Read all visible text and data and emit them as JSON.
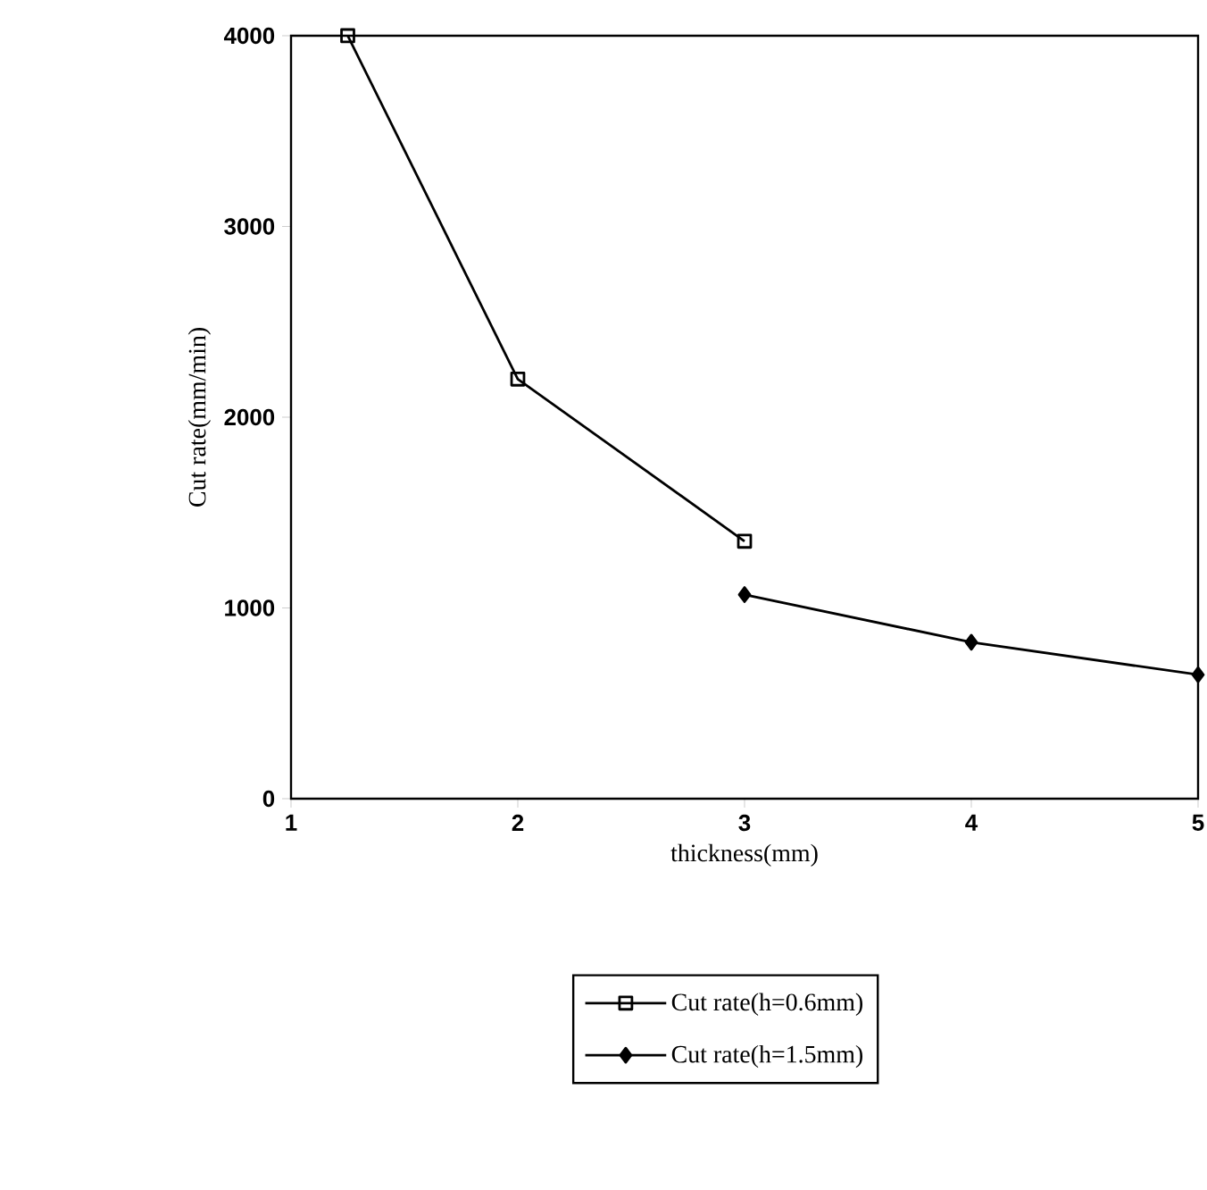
{
  "chart_data": {
    "type": "line",
    "xlabel": "thickness(mm)",
    "ylabel": "Cut rate(mm/min)",
    "xlim": [
      1,
      5
    ],
    "xticks": [
      1,
      2,
      3,
      4,
      5
    ],
    "ylim": [
      0,
      4000
    ],
    "yticks": [
      0,
      1000,
      2000,
      3000,
      4000
    ],
    "legend": "bottom",
    "series": [
      {
        "name": "Cut rate(h=0.6mm)",
        "color": "#000000",
        "marker": "square",
        "x": [
          1.25,
          2,
          3
        ],
        "values": [
          4000,
          2200,
          1350
        ]
      },
      {
        "name": "Cut rate(h=1.5mm)",
        "color": "#000000",
        "marker": "diamond",
        "x": [
          3,
          4,
          5
        ],
        "values": [
          1070,
          820,
          650
        ]
      }
    ]
  }
}
